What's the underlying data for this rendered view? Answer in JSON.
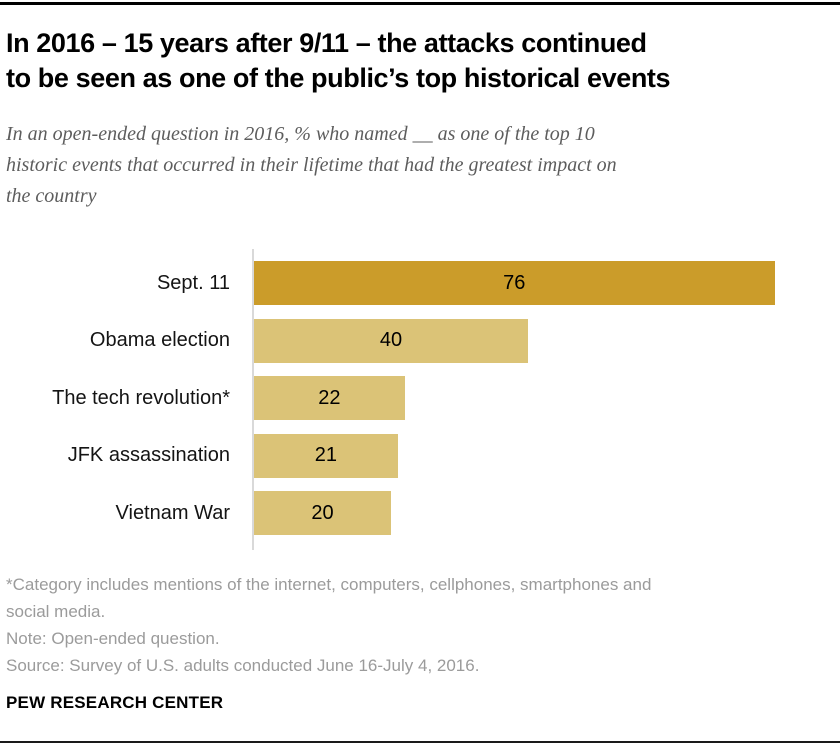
{
  "header": {
    "title_lines": [
      "In 2016 – 15 years after 9/11 – the attacks continued",
      "to be seen as one of the public’s top historical events"
    ],
    "subtitle_lines": [
      "In an open-ended question in 2016, % who named __ as one of the top 10",
      "historic events that occurred in their lifetime that had the greatest impact on",
      "the country"
    ]
  },
  "chart_data": {
    "type": "bar",
    "orientation": "horizontal",
    "title": "In 2016 – 15 years after 9/11 – the attacks continued to be seen as one of the public’s top historical events",
    "categories": [
      "Sept. 11",
      "Obama election",
      "The tech revolution*",
      "JFK assassination",
      "Vietnam War"
    ],
    "values": [
      76,
      40,
      22,
      21,
      20
    ],
    "xlim": [
      0,
      86
    ],
    "grid": false,
    "legend": "none",
    "value_label_position": "inside-center",
    "highlight_index": 0,
    "colors": {
      "highlight": "#CB9C2A",
      "default": "#DBC377",
      "axis_line": "#D9D9D9",
      "value_text": "#000000"
    }
  },
  "footnotes": {
    "lines": [
      "*Category includes mentions of the internet, computers, cellphones, smartphones and",
      "social media.",
      "Note: Open-ended question.",
      "Source: Survey of U.S. adults conducted June 16-July 4, 2016."
    ]
  },
  "branding": {
    "label": "PEW RESEARCH CENTER"
  }
}
